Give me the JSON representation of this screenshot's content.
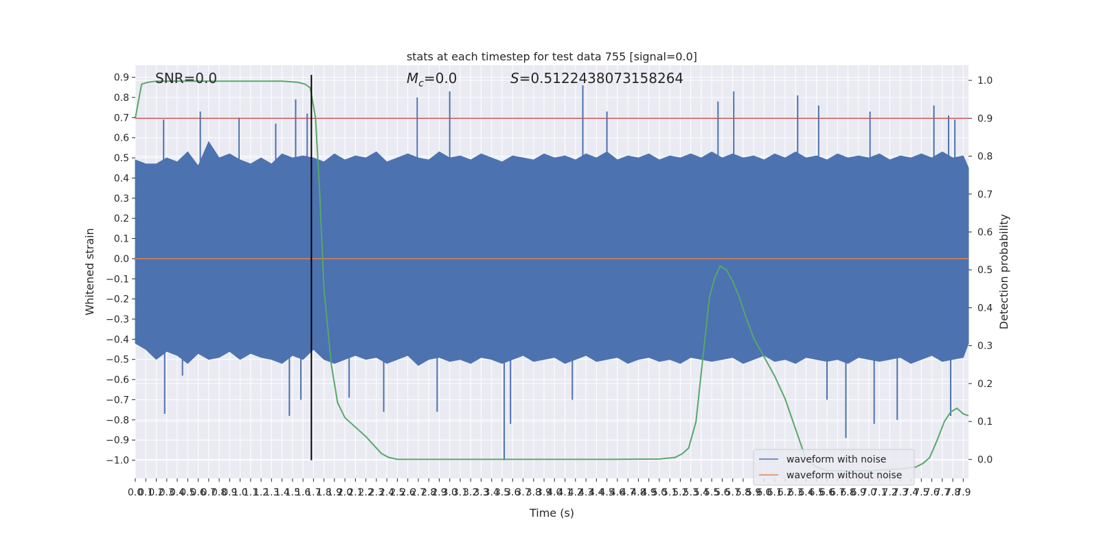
{
  "chart_data": {
    "type": "line",
    "title": "stats at each timestep for test data 755 [signal=0.0]",
    "xlabel": "Time (s)",
    "ylabel": "Whitened strain",
    "y2label": "Detection probability",
    "xlim": [
      0.0,
      7.95
    ],
    "ylim": [
      -1.09,
      0.96
    ],
    "y2lim": [
      -0.05,
      1.04
    ],
    "x_ticks": [
      0.0,
      0.1,
      0.2,
      0.3,
      0.4,
      0.5,
      0.6,
      0.7,
      0.8,
      0.9,
      1.0,
      1.1,
      1.2,
      1.3,
      1.4,
      1.5,
      1.6,
      1.7,
      1.8,
      1.9,
      2.0,
      2.1,
      2.2,
      2.3,
      2.4,
      2.5,
      2.6,
      2.7,
      2.8,
      2.9,
      3.0,
      3.1,
      3.2,
      3.3,
      3.4,
      3.5,
      3.6,
      3.7,
      3.8,
      3.9,
      4.0,
      4.1,
      4.2,
      4.3,
      4.4,
      4.5,
      4.6,
      4.7,
      4.8,
      4.9,
      5.0,
      5.1,
      5.2,
      5.3,
      5.4,
      5.5,
      5.6,
      5.7,
      5.8,
      5.9,
      6.0,
      6.1,
      6.2,
      6.3,
      6.4,
      6.5,
      6.6,
      6.7,
      6.8,
      6.9,
      7.0,
      7.1,
      7.2,
      7.3,
      7.4,
      7.5,
      7.6,
      7.7,
      7.8,
      7.9
    ],
    "y_ticks": [
      -1.0,
      -0.9,
      -0.8,
      -0.7,
      -0.6,
      -0.5,
      -0.4,
      -0.3,
      -0.2,
      -0.1,
      0.0,
      0.1,
      0.2,
      0.3,
      0.4,
      0.5,
      0.6,
      0.7,
      0.8,
      0.9
    ],
    "y2_ticks": [
      0.0,
      0.1,
      0.2,
      0.3,
      0.4,
      0.5,
      0.6,
      0.7,
      0.8,
      0.9,
      1.0
    ],
    "threshold": 0.9,
    "marker_x": 1.68,
    "annotations": {
      "snr": "SNR=0.0",
      "mc_symbol": "M",
      "mc_sub": "c",
      "mc_value": "=0.0",
      "s_symbol": "S",
      "s_value": "=0.5122438073158264"
    },
    "series": [
      {
        "name": "waveform with noise",
        "color": "#4c72b0",
        "envelope_upper": [
          [
            0.0,
            0.49
          ],
          [
            0.1,
            0.47
          ],
          [
            0.2,
            0.47
          ],
          [
            0.3,
            0.5
          ],
          [
            0.4,
            0.48
          ],
          [
            0.5,
            0.53
          ],
          [
            0.6,
            0.46
          ],
          [
            0.7,
            0.58
          ],
          [
            0.8,
            0.5
          ],
          [
            0.9,
            0.52
          ],
          [
            1.0,
            0.49
          ],
          [
            1.1,
            0.47
          ],
          [
            1.2,
            0.5
          ],
          [
            1.3,
            0.47
          ],
          [
            1.4,
            0.52
          ],
          [
            1.5,
            0.5
          ],
          [
            1.6,
            0.51
          ],
          [
            1.7,
            0.5
          ],
          [
            1.8,
            0.48
          ],
          [
            1.9,
            0.52
          ],
          [
            2.0,
            0.49
          ],
          [
            2.1,
            0.51
          ],
          [
            2.2,
            0.5
          ],
          [
            2.3,
            0.53
          ],
          [
            2.4,
            0.48
          ],
          [
            2.5,
            0.5
          ],
          [
            2.6,
            0.52
          ],
          [
            2.7,
            0.5
          ],
          [
            2.8,
            0.49
          ],
          [
            2.9,
            0.53
          ],
          [
            3.0,
            0.5
          ],
          [
            3.1,
            0.51
          ],
          [
            3.2,
            0.49
          ],
          [
            3.3,
            0.52
          ],
          [
            3.4,
            0.5
          ],
          [
            3.5,
            0.48
          ],
          [
            3.6,
            0.51
          ],
          [
            3.7,
            0.5
          ],
          [
            3.8,
            0.49
          ],
          [
            3.9,
            0.52
          ],
          [
            4.0,
            0.5
          ],
          [
            4.1,
            0.51
          ],
          [
            4.2,
            0.49
          ],
          [
            4.3,
            0.52
          ],
          [
            4.4,
            0.5
          ],
          [
            4.5,
            0.53
          ],
          [
            4.6,
            0.49
          ],
          [
            4.7,
            0.51
          ],
          [
            4.8,
            0.5
          ],
          [
            4.9,
            0.52
          ],
          [
            5.0,
            0.49
          ],
          [
            5.1,
            0.51
          ],
          [
            5.2,
            0.5
          ],
          [
            5.3,
            0.52
          ],
          [
            5.4,
            0.5
          ],
          [
            5.5,
            0.53
          ],
          [
            5.6,
            0.5
          ],
          [
            5.7,
            0.52
          ],
          [
            5.8,
            0.5
          ],
          [
            5.9,
            0.51
          ],
          [
            6.0,
            0.49
          ],
          [
            6.1,
            0.52
          ],
          [
            6.2,
            0.5
          ],
          [
            6.3,
            0.53
          ],
          [
            6.4,
            0.5
          ],
          [
            6.5,
            0.51
          ],
          [
            6.6,
            0.49
          ],
          [
            6.7,
            0.52
          ],
          [
            6.8,
            0.5
          ],
          [
            6.9,
            0.51
          ],
          [
            7.0,
            0.5
          ],
          [
            7.1,
            0.52
          ],
          [
            7.2,
            0.49
          ],
          [
            7.3,
            0.51
          ],
          [
            7.4,
            0.5
          ],
          [
            7.5,
            0.52
          ],
          [
            7.6,
            0.5
          ],
          [
            7.7,
            0.53
          ],
          [
            7.8,
            0.5
          ],
          [
            7.9,
            0.51
          ],
          [
            7.95,
            0.45
          ]
        ],
        "envelope_lower": [
          [
            0.0,
            -0.42
          ],
          [
            0.1,
            -0.45
          ],
          [
            0.2,
            -0.5
          ],
          [
            0.3,
            -0.46
          ],
          [
            0.4,
            -0.48
          ],
          [
            0.5,
            -0.52
          ],
          [
            0.6,
            -0.47
          ],
          [
            0.7,
            -0.5
          ],
          [
            0.8,
            -0.49
          ],
          [
            0.9,
            -0.46
          ],
          [
            1.0,
            -0.5
          ],
          [
            1.1,
            -0.47
          ],
          [
            1.2,
            -0.49
          ],
          [
            1.3,
            -0.5
          ],
          [
            1.4,
            -0.52
          ],
          [
            1.5,
            -0.48
          ],
          [
            1.6,
            -0.5
          ],
          [
            1.7,
            -0.45
          ],
          [
            1.8,
            -0.5
          ],
          [
            1.9,
            -0.52
          ],
          [
            2.0,
            -0.5
          ],
          [
            2.1,
            -0.48
          ],
          [
            2.2,
            -0.5
          ],
          [
            2.3,
            -0.49
          ],
          [
            2.4,
            -0.52
          ],
          [
            2.5,
            -0.5
          ],
          [
            2.6,
            -0.48
          ],
          [
            2.7,
            -0.53
          ],
          [
            2.8,
            -0.5
          ],
          [
            2.9,
            -0.49
          ],
          [
            3.0,
            -0.51
          ],
          [
            3.1,
            -0.5
          ],
          [
            3.2,
            -0.52
          ],
          [
            3.3,
            -0.49
          ],
          [
            3.4,
            -0.5
          ],
          [
            3.5,
            -0.52
          ],
          [
            3.6,
            -0.5
          ],
          [
            3.7,
            -0.48
          ],
          [
            3.8,
            -0.51
          ],
          [
            3.9,
            -0.5
          ],
          [
            4.0,
            -0.49
          ],
          [
            4.1,
            -0.52
          ],
          [
            4.2,
            -0.5
          ],
          [
            4.3,
            -0.48
          ],
          [
            4.4,
            -0.51
          ],
          [
            4.5,
            -0.5
          ],
          [
            4.6,
            -0.49
          ],
          [
            4.7,
            -0.52
          ],
          [
            4.8,
            -0.5
          ],
          [
            4.9,
            -0.49
          ],
          [
            5.0,
            -0.51
          ],
          [
            5.1,
            -0.5
          ],
          [
            5.2,
            -0.52
          ],
          [
            5.3,
            -0.49
          ],
          [
            5.4,
            -0.5
          ],
          [
            5.5,
            -0.51
          ],
          [
            5.6,
            -0.5
          ],
          [
            5.7,
            -0.49
          ],
          [
            5.8,
            -0.52
          ],
          [
            5.9,
            -0.5
          ],
          [
            6.0,
            -0.48
          ],
          [
            6.1,
            -0.51
          ],
          [
            6.2,
            -0.5
          ],
          [
            6.3,
            -0.52
          ],
          [
            6.4,
            -0.49
          ],
          [
            6.5,
            -0.5
          ],
          [
            6.6,
            -0.51
          ],
          [
            6.7,
            -0.5
          ],
          [
            6.8,
            -0.52
          ],
          [
            6.9,
            -0.49
          ],
          [
            7.0,
            -0.5
          ],
          [
            7.1,
            -0.51
          ],
          [
            7.2,
            -0.5
          ],
          [
            7.3,
            -0.49
          ],
          [
            7.4,
            -0.52
          ],
          [
            7.5,
            -0.5
          ],
          [
            7.6,
            -0.48
          ],
          [
            7.7,
            -0.51
          ],
          [
            7.8,
            -0.5
          ],
          [
            7.9,
            -0.49
          ],
          [
            7.95,
            -0.42
          ]
        ],
        "peaks": [
          [
            0.27,
            0.69
          ],
          [
            0.62,
            0.73
          ],
          [
            0.99,
            0.7
          ],
          [
            1.34,
            0.67
          ],
          [
            1.53,
            0.79
          ],
          [
            1.64,
            0.72
          ],
          [
            2.69,
            0.8
          ],
          [
            3.0,
            0.83
          ],
          [
            4.27,
            0.86
          ],
          [
            4.5,
            0.73
          ],
          [
            5.56,
            0.78
          ],
          [
            5.71,
            0.83
          ],
          [
            6.32,
            0.81
          ],
          [
            6.52,
            0.76
          ],
          [
            7.01,
            0.73
          ],
          [
            7.62,
            0.76
          ],
          [
            7.76,
            0.71
          ],
          [
            7.82,
            0.69
          ]
        ],
        "troughs": [
          [
            0.28,
            -0.77
          ],
          [
            0.45,
            -0.58
          ],
          [
            1.47,
            -0.78
          ],
          [
            1.58,
            -0.7
          ],
          [
            2.04,
            -0.69
          ],
          [
            2.37,
            -0.76
          ],
          [
            2.88,
            -0.76
          ],
          [
            3.52,
            -1.0
          ],
          [
            3.58,
            -0.82
          ],
          [
            4.17,
            -0.7
          ],
          [
            6.6,
            -0.7
          ],
          [
            6.78,
            -0.89
          ],
          [
            7.05,
            -0.82
          ],
          [
            7.27,
            -0.8
          ],
          [
            7.78,
            -0.78
          ]
        ]
      },
      {
        "name": "waveform without noise",
        "color": "#dd8452",
        "values": [
          [
            0.0,
            0.0
          ],
          [
            7.95,
            0.0
          ]
        ]
      },
      {
        "color": "#55a868",
        "axis": "right",
        "points": [
          [
            0.0,
            0.9
          ],
          [
            0.06,
            0.99
          ],
          [
            0.12,
            0.995
          ],
          [
            0.2,
            0.998
          ],
          [
            0.5,
            0.998
          ],
          [
            1.0,
            0.998
          ],
          [
            1.4,
            0.998
          ],
          [
            1.55,
            0.995
          ],
          [
            1.62,
            0.99
          ],
          [
            1.67,
            0.98
          ],
          [
            1.72,
            0.9
          ],
          [
            1.76,
            0.7
          ],
          [
            1.8,
            0.45
          ],
          [
            1.87,
            0.25
          ],
          [
            1.93,
            0.15
          ],
          [
            2.0,
            0.11
          ],
          [
            2.1,
            0.085
          ],
          [
            2.2,
            0.06
          ],
          [
            2.3,
            0.03
          ],
          [
            2.35,
            0.015
          ],
          [
            2.42,
            0.005
          ],
          [
            2.5,
            0.0
          ],
          [
            3.0,
            0.0
          ],
          [
            4.0,
            0.0
          ],
          [
            4.5,
            0.0
          ],
          [
            5.0,
            0.001
          ],
          [
            5.15,
            0.005
          ],
          [
            5.22,
            0.015
          ],
          [
            5.28,
            0.03
          ],
          [
            5.35,
            0.1
          ],
          [
            5.42,
            0.28
          ],
          [
            5.48,
            0.43
          ],
          [
            5.53,
            0.48
          ],
          [
            5.58,
            0.51
          ],
          [
            5.64,
            0.5
          ],
          [
            5.7,
            0.47
          ],
          [
            5.76,
            0.43
          ],
          [
            5.82,
            0.38
          ],
          [
            5.9,
            0.32
          ],
          [
            6.0,
            0.27
          ],
          [
            6.1,
            0.22
          ],
          [
            6.2,
            0.16
          ],
          [
            6.3,
            0.08
          ],
          [
            6.4,
            0.0
          ],
          [
            6.5,
            -0.02
          ],
          [
            6.6,
            -0.03
          ],
          [
            6.8,
            -0.03
          ],
          [
            7.0,
            -0.03
          ],
          [
            7.3,
            -0.025
          ],
          [
            7.45,
            -0.02
          ],
          [
            7.52,
            -0.01
          ],
          [
            7.58,
            0.005
          ],
          [
            7.65,
            0.05
          ],
          [
            7.72,
            0.1
          ],
          [
            7.78,
            0.125
          ],
          [
            7.84,
            0.135
          ],
          [
            7.9,
            0.12
          ],
          [
            7.95,
            0.115
          ]
        ]
      }
    ],
    "legend_placement": "lower-right",
    "grid": true
  }
}
